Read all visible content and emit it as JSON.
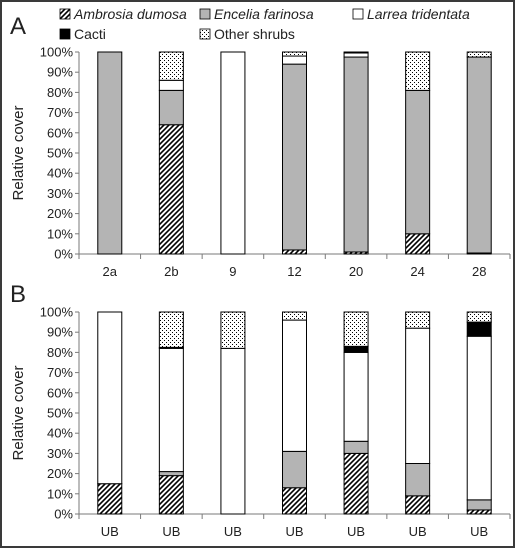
{
  "legend": [
    {
      "key": "ambrosia",
      "label": "Ambrosia dumosa",
      "italic": true
    },
    {
      "key": "encelia",
      "label": "Encelia farinosa",
      "italic": true
    },
    {
      "key": "larrea",
      "label": "Larrea tridentata",
      "italic": true
    },
    {
      "key": "cacti",
      "label": "Cacti",
      "italic": false
    },
    {
      "key": "other",
      "label": "Other shrubs",
      "italic": false
    }
  ],
  "colors": {
    "encelia": "#b4b4b4",
    "larrea": "#ffffff",
    "cacti": "#000000",
    "ambrosia_pattern": "diagonal-hatch",
    "other_pattern": "dotted",
    "frame": "#3a3a3a"
  },
  "chart_data": [
    {
      "type": "bar",
      "stacked": true,
      "panel_label": "A",
      "ylabel": "Relative cover",
      "ylim": [
        0,
        100
      ],
      "yticks": [
        "0%",
        "10%",
        "20%",
        "30%",
        "40%",
        "50%",
        "60%",
        "70%",
        "80%",
        "90%",
        "100%"
      ],
      "categories": [
        "2a",
        "2b",
        "9",
        "12",
        "20",
        "24",
        "28"
      ],
      "series": [
        {
          "key": "ambrosia",
          "name": "Ambrosia dumosa",
          "values": [
            0,
            64,
            0,
            2,
            1,
            10,
            0.5
          ]
        },
        {
          "key": "encelia",
          "name": "Encelia farinosa",
          "values": [
            100,
            17,
            0,
            92,
            96.5,
            71,
            97
          ]
        },
        {
          "key": "larrea",
          "name": "Larrea tridentata",
          "values": [
            0,
            5,
            100,
            4,
            2,
            0,
            0
          ]
        },
        {
          "key": "cacti",
          "name": "Cacti",
          "values": [
            0,
            0,
            0,
            0,
            0.5,
            0,
            0
          ]
        },
        {
          "key": "other",
          "name": "Other shrubs",
          "values": [
            0,
            14,
            0,
            2,
            0,
            19,
            2.5
          ]
        }
      ]
    },
    {
      "type": "bar",
      "stacked": true,
      "panel_label": "B",
      "ylabel": "Relative cover",
      "ylim": [
        0,
        100
      ],
      "yticks": [
        "0%",
        "10%",
        "20%",
        "30%",
        "40%",
        "50%",
        "60%",
        "70%",
        "80%",
        "90%",
        "100%"
      ],
      "categories": [
        "UB",
        "UB",
        "UB",
        "UB",
        "UB",
        "UB",
        "UB"
      ],
      "series": [
        {
          "key": "ambrosia",
          "name": "Ambrosia dumosa",
          "values": [
            15,
            19,
            0,
            13,
            30,
            9,
            2
          ]
        },
        {
          "key": "encelia",
          "name": "Encelia farinosa",
          "values": [
            0,
            2,
            0,
            18,
            6,
            16,
            5
          ]
        },
        {
          "key": "larrea",
          "name": "Larrea tridentata",
          "values": [
            85,
            61,
            82,
            65,
            44,
            67,
            81
          ]
        },
        {
          "key": "cacti",
          "name": "Cacti",
          "values": [
            0,
            0.5,
            0,
            0,
            3,
            0,
            7
          ]
        },
        {
          "key": "other",
          "name": "Other shrubs",
          "values": [
            0,
            17.5,
            18,
            4,
            17,
            8,
            5
          ]
        }
      ]
    }
  ]
}
